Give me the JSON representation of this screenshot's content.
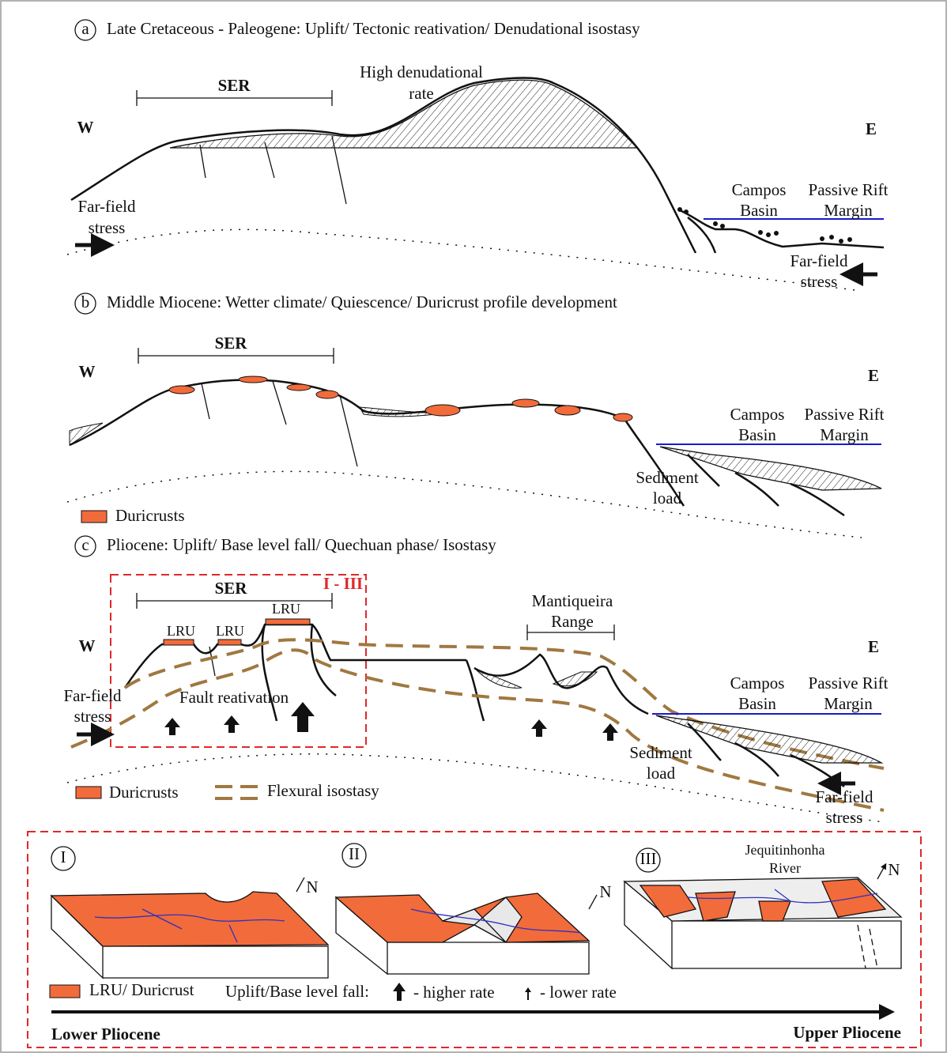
{
  "panel_a": {
    "label": "a",
    "title": "Late Cretaceous - Paleogene: Uplift/ Tectonic reativation/ Denudational isostasy",
    "ser": "SER",
    "denudation": [
      "High denudational",
      "rate"
    ],
    "west": "W",
    "east": "E",
    "far_field_west": [
      "Far-field",
      "stress"
    ],
    "campos_basin": [
      "Campos",
      "Basin"
    ],
    "passive_margin": [
      "Passive Rift",
      "Margin"
    ],
    "far_field_east": [
      "Far-field",
      "stress"
    ]
  },
  "panel_b": {
    "label": "b",
    "title": "Middle Miocene: Wetter climate/ Quiescence/ Duricrust profile development",
    "ser": "SER",
    "west": "W",
    "east": "E",
    "campos_basin": [
      "Campos",
      "Basin"
    ],
    "passive_margin": [
      "Passive Rift",
      "Margin"
    ],
    "sediment_load": [
      "Sediment",
      "load"
    ],
    "legend": "Duricrusts"
  },
  "panel_c": {
    "label": "c",
    "title": "Pliocene: Uplift/ Base level fall/ Quechuan phase/ Isostasy",
    "inset_label": "I - III",
    "ser": "SER",
    "lru": [
      "LRU",
      "LRU",
      "LRU"
    ],
    "mantiqueira": [
      "Mantiqueira",
      "Range"
    ],
    "west": "W",
    "east": "E",
    "far_field_west": [
      "Far-field",
      "stress"
    ],
    "fault": "Fault reativation",
    "campos_basin": [
      "Campos",
      "Basin"
    ],
    "passive_margin": [
      "Passive Rift",
      "Margin"
    ],
    "sediment_load": [
      "Sediment",
      "load"
    ],
    "far_field_east": [
      "Far-field",
      "stress"
    ],
    "legend": {
      "duricrusts": "Duricrusts",
      "flexural": "Flexural isostasy"
    }
  },
  "inset": {
    "stages": [
      {
        "label": "I",
        "north": "N"
      },
      {
        "label": "II",
        "north": "N"
      },
      {
        "label": "III",
        "north": "N",
        "river": [
          "Jequitinhonha",
          "River"
        ]
      }
    ],
    "legend": {
      "lru": "LRU/ Duricrust",
      "uplift": "Uplift/Base level fall:",
      "higher": "- higher rate",
      "lower": "- lower rate"
    },
    "time": {
      "start": "Lower Pliocene",
      "end": "Upper Pliocene"
    }
  }
}
